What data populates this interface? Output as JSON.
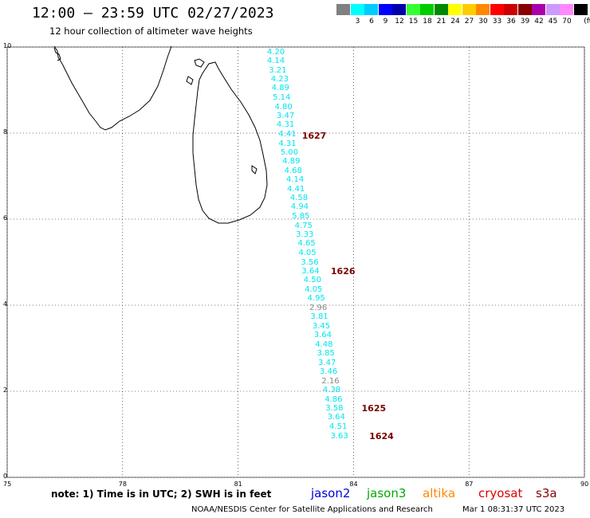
{
  "header": {
    "title": "12:00 – 23:59 UTC 02/27/2023",
    "subtitle": "12 hour collection of altimeter wave heights"
  },
  "legend": {
    "unit": "(ft)",
    "entries": [
      {
        "label": "",
        "color": "#808080"
      },
      {
        "label": "3",
        "color": "#00ffff"
      },
      {
        "label": "6",
        "color": "#00ccff"
      },
      {
        "label": "9",
        "color": "#0000ff"
      },
      {
        "label": "12",
        "color": "#0000aa"
      },
      {
        "label": "15",
        "color": "#33ff33"
      },
      {
        "label": "18",
        "color": "#00cc00"
      },
      {
        "label": "21",
        "color": "#008800"
      },
      {
        "label": "24",
        "color": "#ffff00"
      },
      {
        "label": "27",
        "color": "#ffcc00"
      },
      {
        "label": "30",
        "color": "#ff8800"
      },
      {
        "label": "33",
        "color": "#ff0000"
      },
      {
        "label": "36",
        "color": "#cc0000"
      },
      {
        "label": "39",
        "color": "#880000"
      },
      {
        "label": "42",
        "color": "#aa00aa"
      },
      {
        "label": "45",
        "color": "#cc99ff"
      },
      {
        "label": "70",
        "color": "#ff88ff"
      },
      {
        "label": "",
        "color": "#000000"
      }
    ]
  },
  "axes": {
    "lon_labels": [
      "75",
      "78",
      "81",
      "84",
      "87",
      "90"
    ],
    "lat_labels": [
      "0",
      "2",
      "4",
      "6",
      "8",
      "10"
    ],
    "lon_range": [
      75,
      90
    ],
    "lat_range": [
      0,
      10
    ]
  },
  "observations": [
    {
      "value": "4.20",
      "lon": 82.0,
      "lat": 9.87,
      "color": "#00e5ee"
    },
    {
      "value": "4.14",
      "lon": 82.0,
      "lat": 9.66,
      "color": "#00e5ee"
    },
    {
      "value": "3.21",
      "lon": 82.05,
      "lat": 9.45,
      "color": "#00e5ee"
    },
    {
      "value": "4.23",
      "lon": 82.1,
      "lat": 9.24,
      "color": "#00e5ee"
    },
    {
      "value": "4.89",
      "lon": 82.12,
      "lat": 9.03,
      "color": "#00e5ee"
    },
    {
      "value": "5.14",
      "lon": 82.15,
      "lat": 8.82,
      "color": "#00e5ee"
    },
    {
      "value": "4.80",
      "lon": 82.2,
      "lat": 8.6,
      "color": "#00e5ee"
    },
    {
      "value": "3.47",
      "lon": 82.25,
      "lat": 8.39,
      "color": "#00e5ee"
    },
    {
      "value": "4.31",
      "lon": 82.25,
      "lat": 8.18,
      "color": "#00e5ee"
    },
    {
      "value": "4.41",
      "lon": 82.3,
      "lat": 7.97,
      "color": "#00e5ee"
    },
    {
      "value": "4.31",
      "lon": 82.3,
      "lat": 7.75,
      "color": "#00e5ee"
    },
    {
      "value": "5.00",
      "lon": 82.35,
      "lat": 7.54,
      "color": "#00e5ee"
    },
    {
      "value": "4.89",
      "lon": 82.4,
      "lat": 7.33,
      "color": "#00e5ee"
    },
    {
      "value": "4.68",
      "lon": 82.45,
      "lat": 7.12,
      "color": "#00e5ee"
    },
    {
      "value": "4.14",
      "lon": 82.5,
      "lat": 6.9,
      "color": "#00e5ee"
    },
    {
      "value": "4.41",
      "lon": 82.52,
      "lat": 6.69,
      "color": "#00e5ee"
    },
    {
      "value": "4.58",
      "lon": 82.6,
      "lat": 6.48,
      "color": "#00e5ee"
    },
    {
      "value": "4.94",
      "lon": 82.62,
      "lat": 6.27,
      "color": "#00e5ee"
    },
    {
      "value": "5.85",
      "lon": 82.65,
      "lat": 6.05,
      "color": "#00e5ee"
    },
    {
      "value": "4.75",
      "lon": 82.72,
      "lat": 5.84,
      "color": "#00e5ee"
    },
    {
      "value": "3.33",
      "lon": 82.75,
      "lat": 5.63,
      "color": "#00e5ee"
    },
    {
      "value": "4.65",
      "lon": 82.8,
      "lat": 5.42,
      "color": "#00e5ee"
    },
    {
      "value": "4.05",
      "lon": 82.82,
      "lat": 5.2,
      "color": "#00e5ee"
    },
    {
      "value": "3.56",
      "lon": 82.88,
      "lat": 4.99,
      "color": "#00e5ee"
    },
    {
      "value": "3.64",
      "lon": 82.9,
      "lat": 4.78,
      "color": "#00e5ee"
    },
    {
      "value": "4.50",
      "lon": 82.95,
      "lat": 4.57,
      "color": "#00e5ee"
    },
    {
      "value": "4.05",
      "lon": 82.98,
      "lat": 4.35,
      "color": "#00e5ee"
    },
    {
      "value": "4.95",
      "lon": 83.05,
      "lat": 4.14,
      "color": "#00e5ee"
    },
    {
      "value": "2.96",
      "lon": 83.1,
      "lat": 3.93,
      "color": "#888888"
    },
    {
      "value": "3.81",
      "lon": 83.13,
      "lat": 3.72,
      "color": "#00e5ee"
    },
    {
      "value": "3.45",
      "lon": 83.18,
      "lat": 3.5,
      "color": "#00e5ee"
    },
    {
      "value": "3.64",
      "lon": 83.22,
      "lat": 3.29,
      "color": "#00e5ee"
    },
    {
      "value": "4.48",
      "lon": 83.25,
      "lat": 3.08,
      "color": "#00e5ee"
    },
    {
      "value": "3.85",
      "lon": 83.3,
      "lat": 2.87,
      "color": "#00e5ee"
    },
    {
      "value": "3.47",
      "lon": 83.33,
      "lat": 2.65,
      "color": "#00e5ee"
    },
    {
      "value": "3.46",
      "lon": 83.37,
      "lat": 2.44,
      "color": "#00e5ee"
    },
    {
      "value": "2.16",
      "lon": 83.42,
      "lat": 2.23,
      "color": "#888888"
    },
    {
      "value": "4.38",
      "lon": 83.45,
      "lat": 2.02,
      "color": "#00e5ee"
    },
    {
      "value": "4.86",
      "lon": 83.5,
      "lat": 1.8,
      "color": "#00e5ee"
    },
    {
      "value": "3.58",
      "lon": 83.52,
      "lat": 1.59,
      "color": "#00e5ee"
    },
    {
      "value": "3.64",
      "lon": 83.57,
      "lat": 1.38,
      "color": "#00e5ee"
    },
    {
      "value": "4.51",
      "lon": 83.62,
      "lat": 1.17,
      "color": "#00e5ee"
    },
    {
      "value": "3.63",
      "lon": 83.65,
      "lat": 0.95,
      "color": "#00e5ee"
    }
  ],
  "pass_labels": [
    {
      "id": "1627",
      "lon": 82.95,
      "lat": 7.92
    },
    {
      "id": "1626",
      "lon": 83.7,
      "lat": 4.78
    },
    {
      "id": "1625",
      "lon": 84.5,
      "lat": 1.59
    },
    {
      "id": "1624",
      "lon": 84.7,
      "lat": 0.95
    }
  ],
  "footer": {
    "note": "note:  1) Time is in UTC;  2) SWH is in feet",
    "satellites": [
      {
        "name": "jason2",
        "color": "#0000dd"
      },
      {
        "name": "jason3",
        "color": "#00aa00"
      },
      {
        "name": "altika",
        "color": "#ff8800"
      },
      {
        "name": "cryosat",
        "color": "#dd0000"
      },
      {
        "name": "s3a",
        "color": "#880000"
      }
    ],
    "credit": "NOAA/NESDIS Center for Satellite Applications and Research",
    "timestamp": "Mar  1 08:31:37 UTC 2023"
  }
}
